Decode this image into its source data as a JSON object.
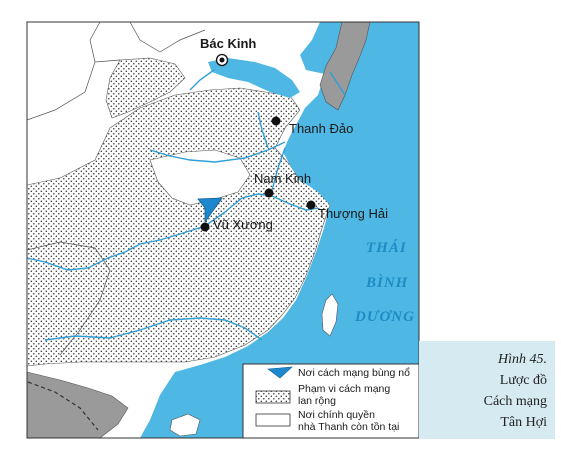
{
  "map": {
    "cities": [
      {
        "name": "Bác Kinh",
        "role": "capital"
      },
      {
        "name": "Thanh Đảo",
        "role": "city"
      },
      {
        "name": "Nam Kinh",
        "role": "city"
      },
      {
        "name": "Thượng Hải",
        "role": "city"
      },
      {
        "name": "Vũ Xương",
        "role": "uprising"
      }
    ],
    "sea_label": [
      "THÁI",
      "BÌNH",
      "DƯƠNG"
    ],
    "colors": {
      "sea": "#4fb7e4",
      "land": "#ffffff",
      "foreign_land": "#9a9a9a",
      "river": "#2f9fd8",
      "revolution_area": "#ffffff",
      "flag": "#1e88cf"
    }
  },
  "legend": {
    "items": [
      {
        "symbol": "blue-flag",
        "label": "Nơi cách mạng bùng nổ"
      },
      {
        "symbol": "dotted-area",
        "label_lines": [
          "Phạm vi cách mạng",
          "lan rộng"
        ]
      },
      {
        "symbol": "white-area",
        "label_lines": [
          "Nơi chính quyền",
          "nhà Thanh còn tồn tại"
        ]
      }
    ]
  },
  "caption": {
    "figure": "Hình 45.",
    "lines": [
      "Lược đồ",
      "Cách mạng",
      "Tân Hợi"
    ]
  }
}
